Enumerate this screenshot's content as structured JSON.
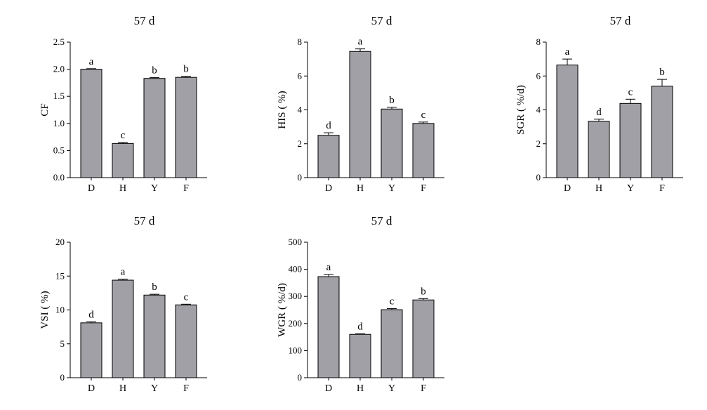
{
  "figure": {
    "background": "#ffffff",
    "bar_color": "#a0a0a6",
    "axis_color": "#000000"
  },
  "chart_data": [
    {
      "type": "bar",
      "title": "57 d",
      "ylabel": "CF",
      "categories": [
        "D",
        "H",
        "Y",
        "F"
      ],
      "values": [
        2.0,
        0.63,
        1.83,
        1.85
      ],
      "errors": [
        0.01,
        0.02,
        0.015,
        0.02
      ],
      "letters": [
        "a",
        "c",
        "b",
        "b"
      ],
      "ylim": [
        0,
        2.5
      ],
      "yticks": [
        0,
        0.5,
        1.0,
        1.5,
        2.0,
        2.5
      ],
      "ytick_labels": [
        "0.0",
        "0.5",
        "1.0",
        "1.5",
        "2.0",
        "2.5"
      ]
    },
    {
      "type": "bar",
      "title": "57 d",
      "ylabel": "HIS ( %)",
      "categories": [
        "D",
        "H",
        "Y",
        "F"
      ],
      "values": [
        2.5,
        7.45,
        4.05,
        3.2
      ],
      "errors": [
        0.15,
        0.15,
        0.1,
        0.08
      ],
      "letters": [
        "d",
        "a",
        "b",
        "c"
      ],
      "ylim": [
        0,
        8
      ],
      "yticks": [
        0,
        2,
        4,
        6,
        8
      ],
      "ytick_labels": [
        "0",
        "2",
        "4",
        "6",
        "8"
      ]
    },
    {
      "type": "bar",
      "title": "57 d",
      "ylabel": "SGR ( %/d)",
      "categories": [
        "D",
        "H",
        "Y",
        "F"
      ],
      "values": [
        6.65,
        3.33,
        4.38,
        5.4
      ],
      "errors": [
        0.35,
        0.12,
        0.25,
        0.4
      ],
      "letters": [
        "a",
        "d",
        "c",
        "b"
      ],
      "ylim": [
        0,
        8
      ],
      "yticks": [
        0,
        2,
        4,
        6,
        8
      ],
      "ytick_labels": [
        "0",
        "2",
        "4",
        "6",
        "8"
      ]
    },
    {
      "type": "bar",
      "title": "57 d",
      "ylabel": "VSI ( %)",
      "categories": [
        "D",
        "H",
        "Y",
        "F"
      ],
      "values": [
        8.1,
        14.4,
        12.2,
        10.75
      ],
      "errors": [
        0.15,
        0.15,
        0.12,
        0.1
      ],
      "letters": [
        "d",
        "a",
        "b",
        "c"
      ],
      "ylim": [
        0,
        20
      ],
      "yticks": [
        0,
        5,
        10,
        15,
        20
      ],
      "ytick_labels": [
        "0",
        "5",
        "10",
        "15",
        "20"
      ]
    },
    {
      "type": "bar",
      "title": "57 d",
      "ylabel": "WGR ( %/d)",
      "categories": [
        "D",
        "H",
        "Y",
        "F"
      ],
      "values": [
        373,
        160,
        251,
        287
      ],
      "errors": [
        8,
        2,
        4,
        5
      ],
      "letters": [
        "a",
        "d",
        "c",
        "b"
      ],
      "ylim": [
        0,
        500
      ],
      "yticks": [
        0,
        100,
        200,
        300,
        400,
        500
      ],
      "ytick_labels": [
        "0",
        "100",
        "200",
        "300",
        "400",
        "500"
      ]
    }
  ]
}
